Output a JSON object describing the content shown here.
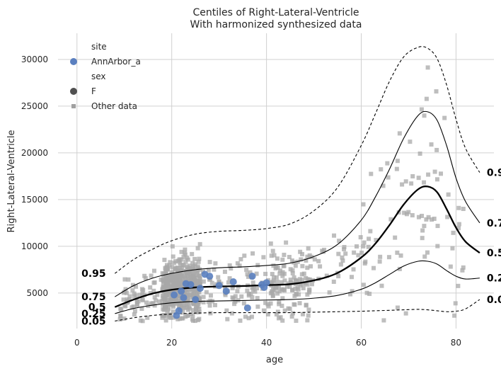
{
  "chart_data": {
    "type": "line",
    "title": "Centiles of Right-Lateral-Ventricle",
    "subtitle": "With harmonized synthesized data",
    "xlabel": "age",
    "ylabel": "Right-Lateral-Ventricle",
    "xlim": [
      -4,
      88
    ],
    "ylim": [
      1200,
      32800
    ],
    "xticks": [
      0,
      20,
      40,
      60,
      80
    ],
    "yticks": [
      5000,
      10000,
      15000,
      20000,
      25000,
      30000
    ],
    "grid": true,
    "legend": {
      "placement": "top-left",
      "entries": [
        {
          "text": "site",
          "marker": "none"
        },
        {
          "text": "AnnArbor_a",
          "marker": "circle",
          "color": "#5a7fbf"
        },
        {
          "text": "sex",
          "marker": "none"
        },
        {
          "text": "F",
          "marker": "circle",
          "color": "#505050"
        },
        {
          "text": "Other data",
          "marker": "square",
          "color": "#a0a0a0"
        }
      ]
    },
    "centiles": [
      {
        "name": "0.05",
        "style": "dashed",
        "width": 1.1,
        "x": [
          8,
          12,
          16,
          20,
          25,
          30,
          35,
          40,
          45,
          50,
          55,
          60,
          63,
          66,
          69,
          72,
          74,
          76,
          78,
          80,
          82,
          85
        ],
        "y": [
          2000,
          2350,
          2600,
          2750,
          2850,
          2900,
          2900,
          2900,
          2900,
          2950,
          3000,
          3050,
          3100,
          3150,
          3200,
          3250,
          3200,
          3100,
          3000,
          3050,
          3300,
          4300
        ],
        "label_x": 85,
        "label_y": 4300,
        "start_label_y": 2000
      },
      {
        "name": "0.25",
        "style": "solid",
        "width": 1.1,
        "x": [
          8,
          12,
          16,
          20,
          25,
          30,
          35,
          40,
          45,
          50,
          55,
          60,
          63,
          66,
          69,
          72,
          74,
          76,
          78,
          80,
          82,
          85
        ],
        "y": [
          2800,
          3350,
          3700,
          3950,
          4100,
          4150,
          4200,
          4250,
          4300,
          4450,
          4750,
          5400,
          6100,
          7000,
          7900,
          8400,
          8400,
          8100,
          7400,
          6800,
          6500,
          6600
        ],
        "label_x": 85,
        "label_y": 6600,
        "start_label_y": 2800
      },
      {
        "name": "0.5",
        "style": "solid",
        "width": 2.3,
        "x": [
          8,
          12,
          16,
          20,
          25,
          30,
          35,
          40,
          45,
          50,
          55,
          60,
          63,
          66,
          69,
          72,
          74,
          76,
          78,
          80,
          82,
          85
        ],
        "y": [
          3500,
          4300,
          4950,
          5350,
          5600,
          5700,
          5750,
          5850,
          5950,
          6350,
          7150,
          8800,
          10300,
          12300,
          14500,
          16100,
          16400,
          15800,
          14000,
          12000,
          10500,
          9300
        ],
        "label_x": 85,
        "label_y": 9300,
        "start_label_y": 3500
      },
      {
        "name": "0.75",
        "style": "solid",
        "width": 1.1,
        "x": [
          8,
          12,
          16,
          20,
          25,
          30,
          35,
          40,
          45,
          50,
          55,
          60,
          63,
          66,
          69,
          72,
          74,
          76,
          78,
          80,
          82,
          85
        ],
        "y": [
          4600,
          5800,
          6600,
          7100,
          7500,
          7700,
          7800,
          7950,
          8200,
          8900,
          10200,
          12800,
          15300,
          18300,
          21600,
          24000,
          24400,
          23500,
          20800,
          17300,
          14800,
          12500
        ],
        "label_x": 85,
        "label_y": 12500,
        "start_label_y": 4600
      },
      {
        "name": "0.95",
        "style": "dashed",
        "width": 1.1,
        "x": [
          8,
          12,
          16,
          20,
          25,
          30,
          35,
          40,
          45,
          50,
          55,
          60,
          63,
          66,
          69,
          72,
          74,
          76,
          78,
          80,
          82,
          85
        ],
        "y": [
          7100,
          8600,
          9700,
          10600,
          11300,
          11600,
          11700,
          11900,
          12400,
          13800,
          16300,
          20800,
          24200,
          27700,
          30300,
          31300,
          31200,
          30100,
          27300,
          23600,
          20500,
          17900
        ],
        "label_x": 85,
        "label_y": 17900,
        "start_label_y": 7100
      }
    ],
    "start_labels_x": 7,
    "annarbor_points": {
      "name": "AnnArbor_a",
      "x": [
        20.5,
        21,
        21.5,
        22,
        22.5,
        23,
        24,
        25,
        26,
        27,
        28,
        30,
        31.5,
        33,
        36,
        37,
        39,
        39.5,
        40
      ],
      "y": [
        4800,
        2600,
        3100,
        5200,
        4500,
        6000,
        5900,
        4300,
        5500,
        7000,
        6800,
        5800,
        5200,
        6200,
        3400,
        6800,
        5900,
        5600,
        6100
      ]
    }
  }
}
